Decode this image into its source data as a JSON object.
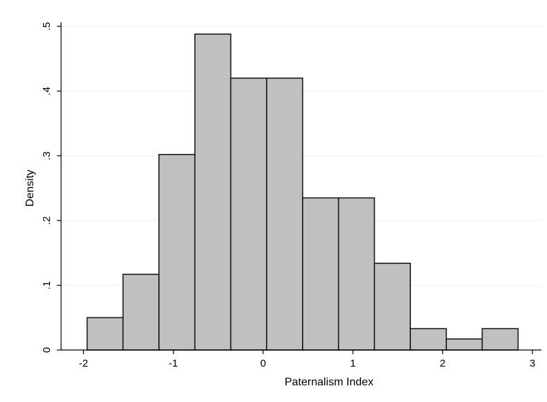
{
  "chart_data": {
    "type": "bar",
    "subtype": "histogram",
    "xlabel": "Paternalism Index",
    "ylabel": "Density",
    "xlim": [
      -2.25,
      3.1
    ],
    "ylim": [
      0,
      0.5
    ],
    "x_ticks": [
      -2,
      -1,
      0,
      1,
      2,
      3
    ],
    "x_tick_labels": [
      "-2",
      "-1",
      "0",
      "1",
      "2",
      "3"
    ],
    "y_ticks": [
      0,
      0.1,
      0.2,
      0.3,
      0.4,
      0.5
    ],
    "y_tick_labels": [
      "0",
      ".1",
      ".2",
      ".3",
      ".4",
      ".5"
    ],
    "grid": "horizontal",
    "legend": "none",
    "bins": [
      {
        "start": -1.96,
        "end": -1.56,
        "density": 0.05
      },
      {
        "start": -1.56,
        "end": -1.16,
        "density": 0.117
      },
      {
        "start": -1.16,
        "end": -0.76,
        "density": 0.302
      },
      {
        "start": -0.76,
        "end": -0.36,
        "density": 0.488
      },
      {
        "start": -0.36,
        "end": 0.04,
        "density": 0.42
      },
      {
        "start": 0.04,
        "end": 0.44,
        "density": 0.42
      },
      {
        "start": 0.44,
        "end": 0.84,
        "density": 0.235
      },
      {
        "start": 0.84,
        "end": 1.24,
        "density": 0.235
      },
      {
        "start": 1.24,
        "end": 1.64,
        "density": 0.134
      },
      {
        "start": 1.64,
        "end": 2.04,
        "density": 0.033
      },
      {
        "start": 2.04,
        "end": 2.44,
        "density": 0.017
      },
      {
        "start": 2.44,
        "end": 2.84,
        "density": 0.033
      }
    ],
    "colors": {
      "bar_fill": "#c0c0c0",
      "bar_stroke": "#1a1a1a",
      "grid": "#eaf2f3",
      "axis": "#000000"
    }
  }
}
